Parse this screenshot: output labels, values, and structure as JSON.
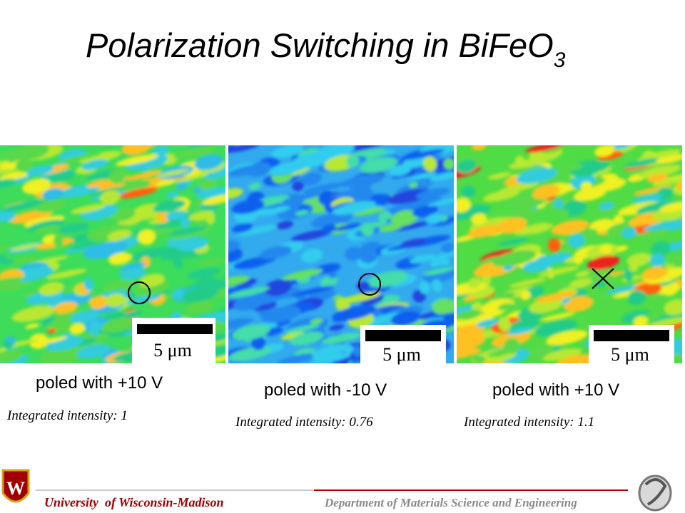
{
  "title": {
    "text": "Polarization Switching in BiFeO",
    "subscript": "3"
  },
  "panels": [
    {
      "scale_bar": "5 μm",
      "caption": "poled with +10 V",
      "intensity": "Integrated intensity: 1"
    },
    {
      "scale_bar": "5 μm",
      "caption": "poled with -10 V",
      "intensity": "Integrated intensity: 0.76"
    },
    {
      "scale_bar": "5 μm",
      "caption": "poled with +10 V",
      "intensity": "Integrated intensity: 1.1"
    }
  ],
  "footer": {
    "university": "University  of Wisconsin-Madison",
    "department": "Department of Materials Science and Engineering"
  }
}
